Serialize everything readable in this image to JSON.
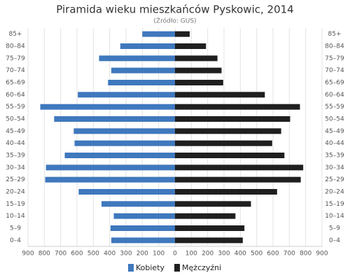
{
  "chart_data": {
    "type": "pyramid",
    "title": "Piramida wieku mieszkańców Pyskowic, 2014",
    "subtitle": "(Źródło: GUS)",
    "categories": [
      "85+",
      "80–84",
      "75–79",
      "70–74",
      "65–69",
      "60–64",
      "55–59",
      "50–54",
      "45–49",
      "40–44",
      "35–39",
      "30–34",
      "25–29",
      "20–24",
      "15–19",
      "10–14",
      "5–9",
      "0–4"
    ],
    "series": [
      {
        "name": "Kobiety",
        "color": "#3f78bd",
        "side": "left",
        "values": [
          200,
          335,
          465,
          390,
          410,
          595,
          825,
          740,
          620,
          615,
          675,
          790,
          795,
          590,
          450,
          375,
          395,
          390
        ]
      },
      {
        "name": "Mężczyźni",
        "color": "#1f1f1f",
        "side": "right",
        "values": [
          90,
          190,
          260,
          285,
          295,
          550,
          765,
          705,
          650,
          595,
          670,
          785,
          770,
          625,
          465,
          370,
          425,
          415
        ]
      }
    ],
    "xlim": [
      0,
      900
    ],
    "xticks": [
      0,
      100,
      200,
      300,
      400,
      500,
      600,
      700,
      800,
      900
    ],
    "grid": true
  }
}
